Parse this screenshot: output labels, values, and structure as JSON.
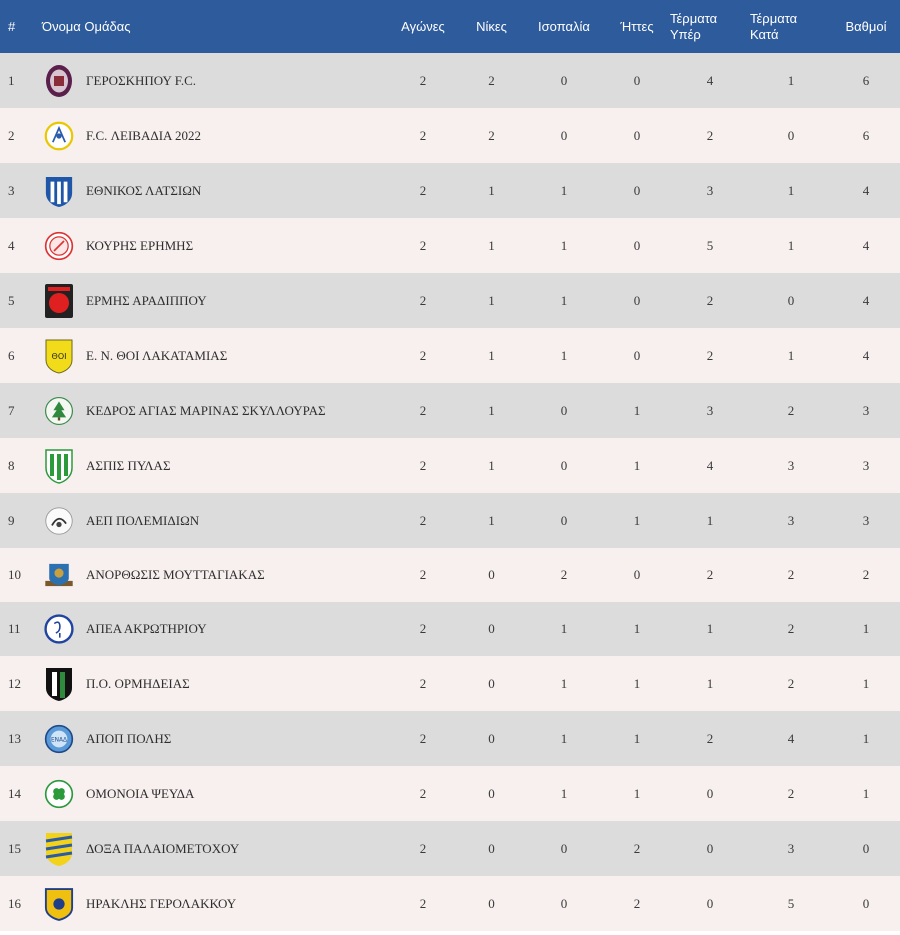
{
  "headers": {
    "rank": "#",
    "team": "Όνομα Ομάδας",
    "played": "Αγώνες",
    "wins": "Νίκες",
    "draws": "Ισοπαλία",
    "losses": "Ήττες",
    "gf_1": "Τέρματα",
    "gf_2": "Υπέρ",
    "ga_1": "Τέρματα",
    "ga_2": "Κατά",
    "points": "Βαθμοί"
  },
  "rows": [
    {
      "rank": "1",
      "team": "ΓΕΡΟΣΚΗΠΟΥ F.C.",
      "played": "2",
      "wins": "2",
      "draws": "0",
      "losses": "0",
      "gf": "4",
      "ga": "1",
      "pts": "6"
    },
    {
      "rank": "2",
      "team": "F.C. ΛΕΙΒΑΔΙΑ 2022",
      "played": "2",
      "wins": "2",
      "draws": "0",
      "losses": "0",
      "gf": "2",
      "ga": "0",
      "pts": "6"
    },
    {
      "rank": "3",
      "team": "ΕΘΝΙΚΟΣ ΛΑΤΣΙΩΝ",
      "played": "2",
      "wins": "1",
      "draws": "1",
      "losses": "0",
      "gf": "3",
      "ga": "1",
      "pts": "4"
    },
    {
      "rank": "4",
      "team": "ΚΟΥΡΗΣ ΕΡΗΜΗΣ",
      "played": "2",
      "wins": "1",
      "draws": "1",
      "losses": "0",
      "gf": "5",
      "ga": "1",
      "pts": "4"
    },
    {
      "rank": "5",
      "team": "ΕΡΜΗΣ ΑΡΑΔΙΠΠΟΥ",
      "played": "2",
      "wins": "1",
      "draws": "1",
      "losses": "0",
      "gf": "2",
      "ga": "0",
      "pts": "4"
    },
    {
      "rank": "6",
      "team": "Ε. Ν. ΘΟΙ ΛΑΚΑΤΑΜΙΑΣ",
      "played": "2",
      "wins": "1",
      "draws": "1",
      "losses": "0",
      "gf": "2",
      "ga": "1",
      "pts": "4"
    },
    {
      "rank": "7",
      "team": "ΚΕΔΡΟΣ ΑΓΙΑΣ ΜΑΡΙΝΑΣ ΣΚΥΛΛΟΥΡΑΣ",
      "played": "2",
      "wins": "1",
      "draws": "0",
      "losses": "1",
      "gf": "3",
      "ga": "2",
      "pts": "3"
    },
    {
      "rank": "8",
      "team": "ΑΣΠΙΣ ΠΥΛΑΣ",
      "played": "2",
      "wins": "1",
      "draws": "0",
      "losses": "1",
      "gf": "4",
      "ga": "3",
      "pts": "3"
    },
    {
      "rank": "9",
      "team": "ΑΕΠ ΠΟΛΕΜΙΔΙΩΝ",
      "played": "2",
      "wins": "1",
      "draws": "0",
      "losses": "1",
      "gf": "1",
      "ga": "3",
      "pts": "3"
    },
    {
      "rank": "10",
      "team": "ΑΝΟΡΘΩΣΙΣ ΜΟΥΤΤΑΓΙΑΚΑΣ",
      "played": "2",
      "wins": "0",
      "draws": "2",
      "losses": "0",
      "gf": "2",
      "ga": "2",
      "pts": "2"
    },
    {
      "rank": "11",
      "team": "ΑΠΕΑ ΑΚΡΩΤΗΡΙΟΥ",
      "played": "2",
      "wins": "0",
      "draws": "1",
      "losses": "1",
      "gf": "1",
      "ga": "2",
      "pts": "1"
    },
    {
      "rank": "12",
      "team": "Π.Ο. ΟΡΜΗΔΕΙΑΣ",
      "played": "2",
      "wins": "0",
      "draws": "1",
      "losses": "1",
      "gf": "1",
      "ga": "2",
      "pts": "1"
    },
    {
      "rank": "13",
      "team": "ΑΠΟΠ ΠΟΛΗΣ",
      "played": "2",
      "wins": "0",
      "draws": "1",
      "losses": "1",
      "gf": "2",
      "ga": "4",
      "pts": "1"
    },
    {
      "rank": "14",
      "team": "ΟΜΟΝΟΙΑ ΨΕΥΔΑ",
      "played": "2",
      "wins": "0",
      "draws": "1",
      "losses": "1",
      "gf": "0",
      "ga": "2",
      "pts": "1"
    },
    {
      "rank": "15",
      "team": "ΔΟΞΑ ΠΑΛΑΙΟΜΕΤΟΧΟΥ",
      "played": "2",
      "wins": "0",
      "draws": "0",
      "losses": "2",
      "gf": "0",
      "ga": "3",
      "pts": "0"
    },
    {
      "rank": "16",
      "team": "ΗΡΑΚΛΗΣ ΓΕΡΟΛΑΚΚΟΥ",
      "played": "2",
      "wins": "0",
      "draws": "0",
      "losses": "2",
      "gf": "0",
      "ga": "5",
      "pts": "0"
    }
  ],
  "colors": {
    "header_bg": "#2e5b9b",
    "row_odd": "#dcdcdc",
    "row_even": "#f8efef"
  }
}
